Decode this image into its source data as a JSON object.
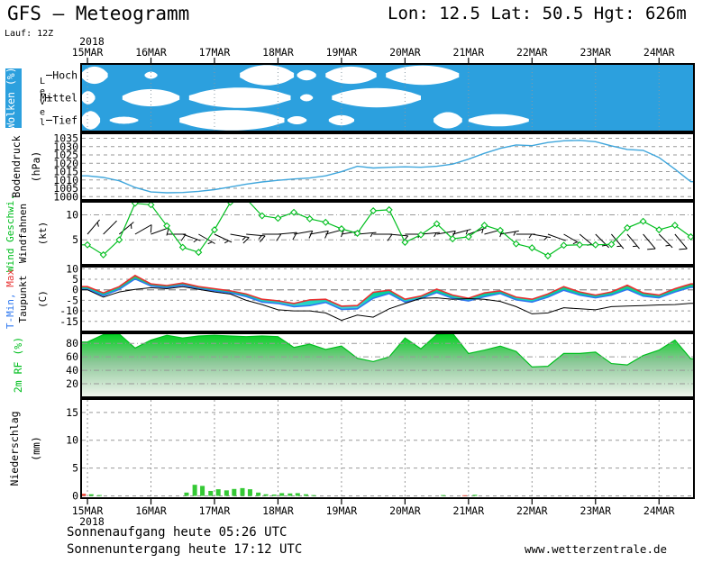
{
  "header": {
    "title": "GFS – Meteogramm",
    "location": "Lon: 12.5 Lat: 50.5 Hgt: 626m",
    "run": "Lauf: 12Z"
  },
  "footer": {
    "sunrise": "Sonnenaufgang heute 05:26 UTC",
    "sunset": "Sonnenuntergang heute 17:12 UTC",
    "website": "www.wetterzentrale.de"
  },
  "chart_data": {
    "type": "meteogram",
    "time_axis": {
      "year": "2018",
      "day_labels": [
        "15MAR",
        "16MAR",
        "17MAR",
        "18MAR",
        "19MAR",
        "20MAR",
        "21MAR",
        "22MAR",
        "23MAR",
        "24MAR"
      ],
      "step_days": 0.25,
      "domain_days": [
        -0.1,
        9.55
      ]
    },
    "colors": {
      "sky_blue": "#2CA0DE",
      "pressure_line": "#3FA6DC",
      "green": "#00BE1E",
      "rf_top": "#00D21E",
      "rf_mid": "#8CC898",
      "rf_bottom": "#F2F6EF",
      "temp_max": "#E83030",
      "temp_min": "#2E78F0",
      "band_top": "#30C860",
      "band_mid": "#00D4A0",
      "band_bottom": "#40D8E0",
      "bar_green": "#35C935",
      "bar_red": "#F05040",
      "grid": "#999999",
      "cloud_white": "#FFFFFF"
    },
    "panels": {
      "clouds": {
        "label": "Wolken (%)",
        "level_label": "Level",
        "rows": [
          "Hoch",
          "Mittel",
          "Tief"
        ],
        "white_segments": {
          "Hoch": [
            [
              -0.1,
              0.32,
              0.85
            ],
            [
              0.9,
              1.1,
              0.35
            ],
            [
              2.4,
              3.25,
              1.0
            ],
            [
              3.3,
              3.6,
              0.5
            ],
            [
              3.75,
              4.55,
              0.85
            ],
            [
              4.7,
              5.85,
              0.95
            ]
          ],
          "Mittel": [
            [
              -0.1,
              0.12,
              0.65
            ],
            [
              0.55,
              1.45,
              0.85
            ],
            [
              1.6,
              3.2,
              1.0
            ],
            [
              3.35,
              3.55,
              0.35
            ],
            [
              3.85,
              5.25,
              0.95
            ]
          ],
          "Tief": [
            [
              -0.1,
              0.2,
              0.9
            ],
            [
              0.35,
              0.8,
              0.35
            ],
            [
              1.45,
              3.1,
              1.0
            ],
            [
              3.15,
              3.45,
              0.4
            ],
            [
              3.8,
              4.2,
              0.5
            ],
            [
              5.45,
              5.9,
              0.8
            ],
            [
              6.0,
              6.95,
              0.6
            ]
          ]
        }
      },
      "pressure": {
        "label": "Bodendruck",
        "unit": "(hPa)",
        "yticks": [
          1035,
          1030,
          1025,
          1020,
          1015,
          1010,
          1005,
          1000
        ],
        "ylim": [
          998,
          1038
        ],
        "values": [
          1012.5,
          1011.5,
          1009.5,
          1005.5,
          1002.8,
          1002.3,
          1002.5,
          1003.2,
          1004.2,
          1005.8,
          1007.5,
          1008.8,
          1009.8,
          1010.6,
          1011.2,
          1012.5,
          1015,
          1018.2,
          1017.2,
          1017.6,
          1017.9,
          1017.6,
          1018.2,
          1019.5,
          1022.5,
          1026,
          1029,
          1031,
          1030.6,
          1032.5,
          1033.5,
          1033.8,
          1033,
          1030.5,
          1028.3,
          1027.8,
          1023.5,
          1016.5,
          1009
        ]
      },
      "wind": {
        "label_speed": "Wind Geschwi.",
        "label_barbs": "Windfahnen",
        "unit": "(kt)",
        "yticks": [
          10,
          5
        ],
        "ylim": [
          0,
          12.6
        ],
        "speeds_kt": [
          4,
          2,
          5,
          12.3,
          12,
          7.8,
          3.5,
          2.5,
          7,
          12.5,
          13.2,
          9.8,
          9.3,
          10.5,
          9.2,
          8.5,
          7.2,
          6.3,
          10.8,
          11,
          4.5,
          6,
          8.2,
          5.2,
          5.6,
          7.9,
          6.9,
          4.2,
          3.4,
          1.8,
          3.9,
          4,
          4,
          4.1,
          7.4,
          8.7,
          7,
          7.9,
          5.6
        ],
        "dirs_deg": [
          40,
          45,
          50,
          60,
          70,
          90,
          110,
          120,
          115,
          100,
          95,
          90,
          85,
          80,
          80,
          75,
          80,
          85,
          90,
          95,
          90,
          85,
          80,
          75,
          70,
          75,
          80,
          90,
          100,
          110,
          120,
          130,
          135,
          140,
          140,
          140,
          135,
          140,
          145
        ]
      },
      "temp": {
        "label_min": "T-Min,",
        "label_max": " Max",
        "label_dew": "Taupunkt",
        "unit": "(C)",
        "yticks": [
          10,
          5,
          0,
          -5,
          -10,
          -15
        ],
        "ylim": [
          -19.8,
          11
        ],
        "tmax": [
          1.5,
          -1.5,
          1.5,
          6.8,
          2.8,
          2,
          3.2,
          1.5,
          0.5,
          -0.5,
          -2,
          -4.5,
          -5.2,
          -6.5,
          -4.8,
          -4.5,
          -7.8,
          -7.5,
          -1.2,
          -0.2,
          -4.5,
          -3,
          0.3,
          -2.5,
          -4,
          -1.5,
          -0.5,
          -3.5,
          -4.5,
          -2,
          1.5,
          -1,
          -2.5,
          -1,
          2.2,
          -1.5,
          -2.5,
          0.5,
          2.8
        ],
        "tmin": [
          0.3,
          -2.8,
          0.2,
          5.2,
          1.8,
          1,
          2.2,
          0.5,
          -0.5,
          -1.5,
          -3.2,
          -5.8,
          -6.5,
          -8,
          -7.5,
          -6,
          -9.3,
          -9,
          -4,
          -1.8,
          -5.8,
          -4.2,
          -1.3,
          -4,
          -5.3,
          -3.3,
          -1.8,
          -4.8,
          -5.8,
          -3.5,
          -0.2,
          -2.5,
          -3.8,
          -2.5,
          0.2,
          -3,
          -3.8,
          -1,
          1.2
        ],
        "dewpoint": [
          0,
          -3.5,
          -1,
          0.2,
          1,
          0.5,
          1.5,
          0.2,
          -1,
          -2,
          -5,
          -7,
          -9.5,
          -10,
          -10,
          -11,
          -14.5,
          -12,
          -13,
          -9,
          -6.5,
          -4,
          -3.8,
          -4.5,
          -4.2,
          -4.5,
          -5.5,
          -8,
          -11.4,
          -11,
          -8.5,
          -9,
          -9.5,
          -8,
          -7.7,
          -7.5,
          -7.2,
          -7,
          -6.4
        ]
      },
      "humidity": {
        "label": "2m RF (%)",
        "yticks": [
          80,
          60,
          40,
          20
        ],
        "ylim": [
          0,
          95
        ],
        "values": [
          82,
          93,
          94,
          73,
          85,
          92,
          88,
          91,
          92,
          91,
          90,
          91,
          90,
          74,
          79,
          71,
          76,
          58,
          53,
          60,
          88,
          72,
          93,
          95,
          65,
          70,
          76,
          68,
          45,
          46,
          65,
          65,
          67,
          50,
          48,
          62,
          70,
          85,
          57
        ]
      },
      "precip": {
        "label": "Niederschlag",
        "unit": "(mm)",
        "yticks": [
          15,
          10,
          5,
          0
        ],
        "ylim": [
          -0.4,
          17.4
        ],
        "bars_green": [
          [
            0.06,
            0.3
          ],
          [
            0.19,
            0.15
          ],
          [
            1.56,
            0.6
          ],
          [
            1.69,
            2.0
          ],
          [
            1.81,
            1.8
          ],
          [
            1.94,
            0.9
          ],
          [
            2.06,
            1.2
          ],
          [
            2.19,
            1.0
          ],
          [
            2.31,
            1.25
          ],
          [
            2.44,
            1.4
          ],
          [
            2.56,
            1.2
          ],
          [
            2.69,
            0.6
          ],
          [
            2.81,
            0.3
          ],
          [
            2.94,
            0.25
          ],
          [
            3.06,
            0.5
          ],
          [
            3.19,
            0.45
          ],
          [
            3.31,
            0.5
          ],
          [
            3.44,
            0.3
          ],
          [
            3.56,
            0.15
          ],
          [
            5.6,
            0.15
          ],
          [
            6.1,
            0.2
          ]
        ],
        "bars_red": [
          [
            -0.06,
            0.4
          ],
          [
            5.94,
            0.12
          ]
        ]
      }
    }
  }
}
